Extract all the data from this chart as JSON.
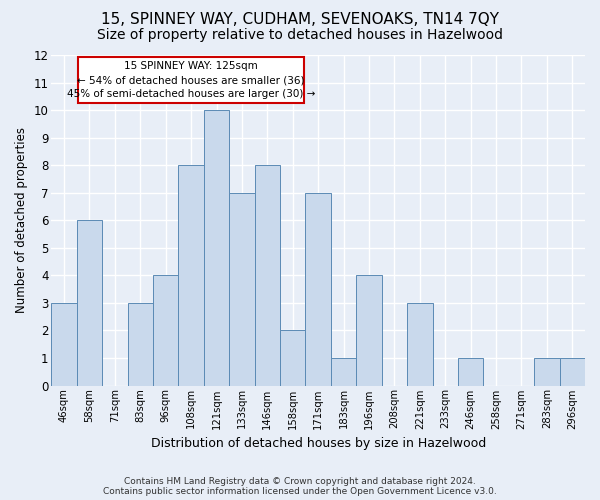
{
  "title": "15, SPINNEY WAY, CUDHAM, SEVENOAKS, TN14 7QY",
  "subtitle": "Size of property relative to detached houses in Hazelwood",
  "xlabel": "Distribution of detached houses by size in Hazelwood",
  "ylabel": "Number of detached properties",
  "categories": [
    "46sqm",
    "58sqm",
    "71sqm",
    "83sqm",
    "96sqm",
    "108sqm",
    "121sqm",
    "133sqm",
    "146sqm",
    "158sqm",
    "171sqm",
    "183sqm",
    "196sqm",
    "208sqm",
    "221sqm",
    "233sqm",
    "246sqm",
    "258sqm",
    "271sqm",
    "283sqm",
    "296sqm"
  ],
  "values": [
    3,
    6,
    0,
    3,
    4,
    8,
    10,
    7,
    8,
    2,
    7,
    1,
    4,
    0,
    3,
    0,
    1,
    0,
    0,
    1,
    1
  ],
  "bar_color": "#c9d9ec",
  "bar_edge_color": "#5b8ab5",
  "ylim": [
    0,
    12
  ],
  "yticks": [
    0,
    1,
    2,
    3,
    4,
    5,
    6,
    7,
    8,
    9,
    10,
    11,
    12
  ],
  "annotation_text": "15 SPINNEY WAY: 125sqm\n← 54% of detached houses are smaller (36)\n45% of semi-detached houses are larger (30) →",
  "annotation_box_color": "#ffffff",
  "annotation_box_edge": "#cc0000",
  "footnote1": "Contains HM Land Registry data © Crown copyright and database right 2024.",
  "footnote2": "Contains public sector information licensed under the Open Government Licence v3.0.",
  "background_color": "#e8eef7",
  "plot_background": "#e8eef7",
  "grid_color": "#ffffff",
  "title_fontsize": 11,
  "subtitle_fontsize": 10
}
